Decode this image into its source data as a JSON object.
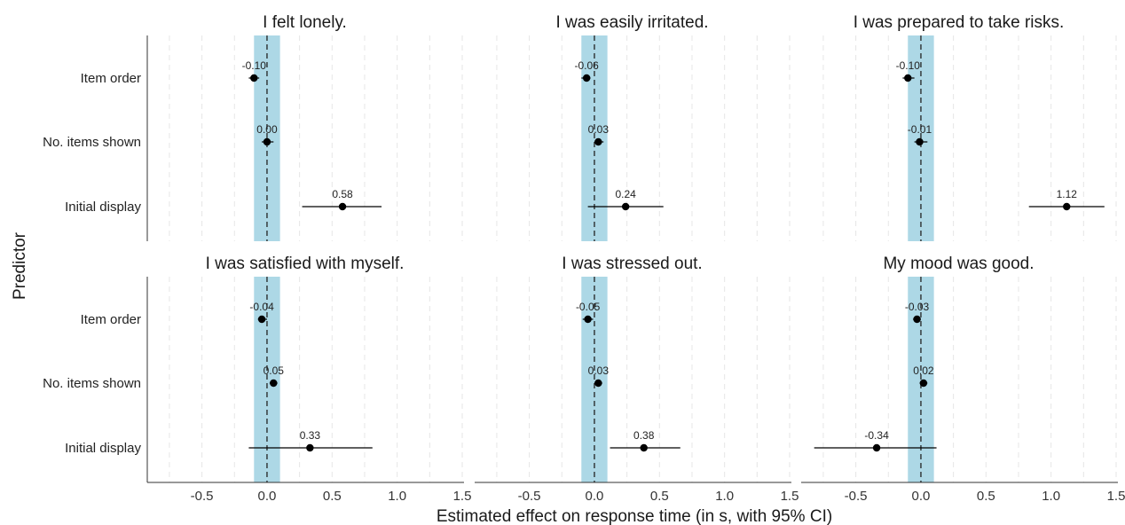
{
  "chart_data": {
    "type": "scatter",
    "subtype": "coefficient-forest-plot",
    "xlabel": "Estimated effect on response time (in s, with 95% CI)",
    "ylabel": "Predictor",
    "xlim": [
      -0.92,
      1.5
    ],
    "x_ticks": [
      -0.5,
      0.0,
      0.5,
      1.0,
      1.5
    ],
    "x_tick_labels": [
      "-0.5",
      "0.0",
      "0.5",
      "1.0",
      "1.5"
    ],
    "categories": [
      "Item order",
      "No. items shown",
      "Initial display"
    ],
    "reference_band": [
      -0.1,
      0.1
    ],
    "reference_line": 0.0,
    "colors": {
      "band": "#add8e6",
      "point": "#000000",
      "grid": "#e6e6e6"
    },
    "grid": "vertical dashed",
    "panels": [
      {
        "title": "I felt lonely.",
        "points": [
          {
            "predictor": "Item order",
            "estimate": -0.1,
            "ci": [
              -0.14,
              -0.06
            ],
            "label": "-0.10"
          },
          {
            "predictor": "No. items shown",
            "estimate": 0.0,
            "ci": [
              -0.04,
              0.05
            ],
            "label": "0.00"
          },
          {
            "predictor": "Initial display",
            "estimate": 0.58,
            "ci": [
              0.27,
              0.88
            ],
            "label": "0.58"
          }
        ]
      },
      {
        "title": "I was easily irritated.",
        "points": [
          {
            "predictor": "Item order",
            "estimate": -0.06,
            "ci": [
              -0.1,
              -0.03
            ],
            "label": "-0.06"
          },
          {
            "predictor": "No. items shown",
            "estimate": 0.03,
            "ci": [
              0.0,
              0.07
            ],
            "label": "0.03"
          },
          {
            "predictor": "Initial display",
            "estimate": 0.24,
            "ci": [
              -0.05,
              0.53
            ],
            "label": "0.24"
          }
        ]
      },
      {
        "title": "I was prepared to take risks.",
        "points": [
          {
            "predictor": "Item order",
            "estimate": -0.1,
            "ci": [
              -0.14,
              -0.05
            ],
            "label": "-0.10"
          },
          {
            "predictor": "No. items shown",
            "estimate": -0.01,
            "ci": [
              -0.05,
              0.05
            ],
            "label": "-0.01"
          },
          {
            "predictor": "Initial display",
            "estimate": 1.12,
            "ci": [
              0.83,
              1.41
            ],
            "label": "1.12"
          }
        ]
      },
      {
        "title": "I was satisfied with myself.",
        "points": [
          {
            "predictor": "Item order",
            "estimate": -0.04,
            "ci": [
              -0.07,
              0.0
            ],
            "label": "-0.04"
          },
          {
            "predictor": "No. items shown",
            "estimate": 0.05,
            "ci": [
              0.02,
              0.08
            ],
            "label": "0.05"
          },
          {
            "predictor": "Initial display",
            "estimate": 0.33,
            "ci": [
              -0.14,
              0.81
            ],
            "label": "0.33"
          }
        ]
      },
      {
        "title": "I was stressed out.",
        "points": [
          {
            "predictor": "Item order",
            "estimate": -0.05,
            "ci": [
              -0.09,
              -0.01
            ],
            "label": "-0.05"
          },
          {
            "predictor": "No. items shown",
            "estimate": 0.03,
            "ci": [
              0.0,
              0.06
            ],
            "label": "0.03"
          },
          {
            "predictor": "Initial display",
            "estimate": 0.38,
            "ci": [
              0.12,
              0.66
            ],
            "label": "0.38"
          }
        ]
      },
      {
        "title": "My mood was good.",
        "points": [
          {
            "predictor": "Item order",
            "estimate": -0.03,
            "ci": [
              -0.06,
              0.0
            ],
            "label": "-0.03"
          },
          {
            "predictor": "No. items shown",
            "estimate": 0.02,
            "ci": [
              -0.01,
              0.05
            ],
            "label": "0.02"
          },
          {
            "predictor": "Initial display",
            "estimate": -0.34,
            "ci": [
              -0.82,
              0.12
            ],
            "label": "-0.34"
          }
        ]
      }
    ]
  }
}
